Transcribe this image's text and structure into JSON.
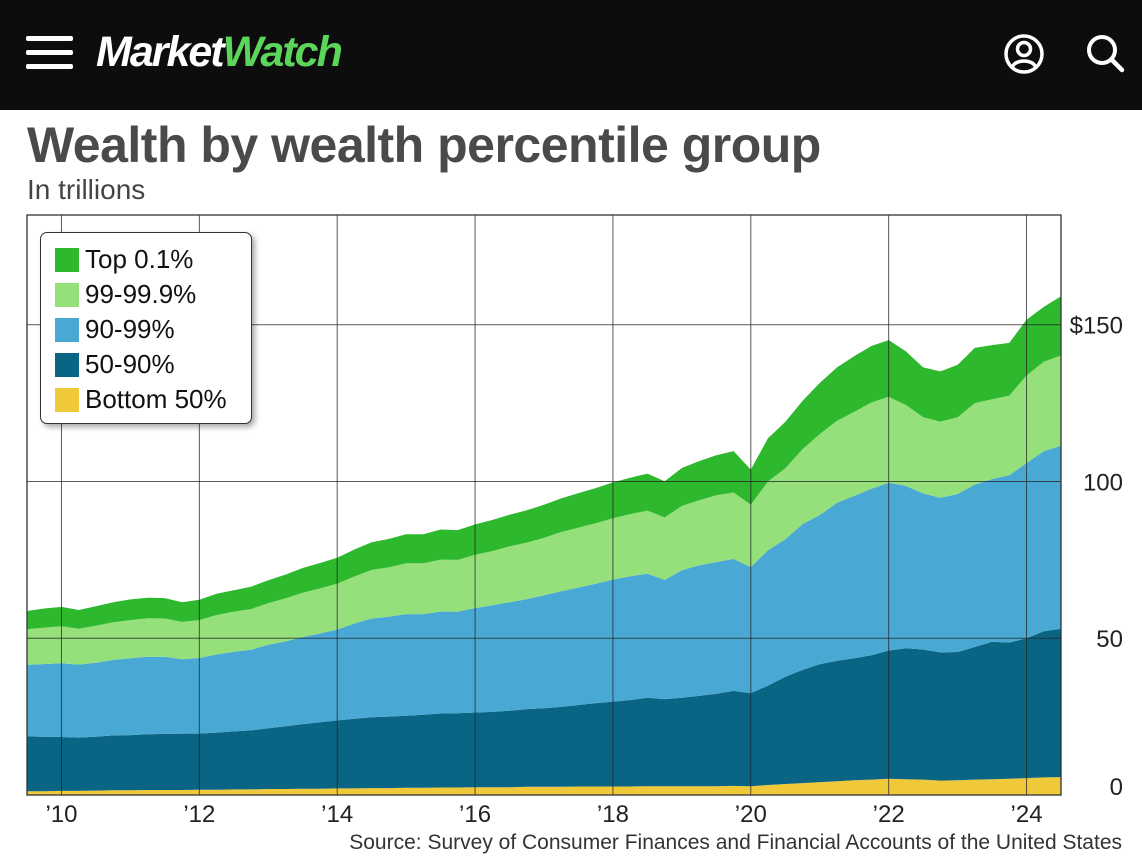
{
  "header": {
    "brand_part1": "Market",
    "brand_part2": "Watch",
    "menu_icon": "hamburger-menu-icon",
    "user_icon": "account-icon",
    "search_icon": "search-icon",
    "colors": {
      "bar": "#0d0d0d",
      "brand_accent": "#5bd65b",
      "brand_text": "#ffffff"
    }
  },
  "chart_data": {
    "type": "area",
    "stacked": true,
    "title": "Wealth by wealth percentile group",
    "subtitle": "In trillions",
    "source": "Source: Survey of Consumer Finances and Financial Accounts of the United States",
    "x_tick_labels": [
      "’10",
      "’12",
      "’14",
      "’16",
      "’18",
      "’20",
      "’22",
      "’24"
    ],
    "x_tick_values": [
      2010,
      2012,
      2014,
      2016,
      2018,
      2020,
      2022,
      2024
    ],
    "y_tick_labels": [
      "0",
      "50",
      "100",
      "$150"
    ],
    "y_tick_values": [
      0,
      50,
      100,
      150
    ],
    "xlim": [
      2009.5,
      2024.5
    ],
    "ylim": [
      0,
      185
    ],
    "grid": true,
    "legend_position": "top-left",
    "x": [
      2009.5,
      2009.75,
      2010.0,
      2010.25,
      2010.5,
      2010.75,
      2011.0,
      2011.25,
      2011.5,
      2011.75,
      2012.0,
      2012.25,
      2012.5,
      2012.75,
      2013.0,
      2013.25,
      2013.5,
      2013.75,
      2014.0,
      2014.25,
      2014.5,
      2014.75,
      2015.0,
      2015.25,
      2015.5,
      2015.75,
      2016.0,
      2016.25,
      2016.5,
      2016.75,
      2017.0,
      2017.25,
      2017.5,
      2017.75,
      2018.0,
      2018.25,
      2018.5,
      2018.75,
      2019.0,
      2019.25,
      2019.5,
      2019.75,
      2020.0,
      2020.25,
      2020.5,
      2020.75,
      2021.0,
      2021.25,
      2021.5,
      2021.75,
      2022.0,
      2022.25,
      2022.5,
      2022.75,
      2023.0,
      2023.25,
      2023.5,
      2023.75,
      2024.0,
      2024.25,
      2024.5
    ],
    "series": [
      {
        "name": "Bottom 50%",
        "color": "#f0c93a",
        "values": [
          1.2,
          1.2,
          1.3,
          1.3,
          1.4,
          1.5,
          1.5,
          1.6,
          1.6,
          1.6,
          1.7,
          1.7,
          1.8,
          1.8,
          1.9,
          1.9,
          2.0,
          2.0,
          2.1,
          2.1,
          2.2,
          2.2,
          2.3,
          2.3,
          2.4,
          2.4,
          2.5,
          2.5,
          2.5,
          2.6,
          2.6,
          2.6,
          2.7,
          2.7,
          2.7,
          2.7,
          2.8,
          2.8,
          2.8,
          2.8,
          2.8,
          2.9,
          2.8,
          3.2,
          3.5,
          3.8,
          4.1,
          4.4,
          4.7,
          4.9,
          5.2,
          5.0,
          4.9,
          4.6,
          4.7,
          4.9,
          5.0,
          5.2,
          5.4,
          5.6,
          5.7
        ]
      },
      {
        "name": "50-90%",
        "color": "#0a6584",
        "values": [
          17.5,
          17.4,
          17.2,
          17.0,
          17.2,
          17.5,
          17.6,
          17.8,
          17.9,
          18.0,
          17.9,
          18.2,
          18.5,
          18.8,
          19.4,
          20.0,
          20.6,
          21.2,
          21.7,
          22.2,
          22.6,
          22.8,
          23.0,
          23.3,
          23.6,
          23.7,
          23.8,
          24.0,
          24.4,
          24.8,
          25.1,
          25.5,
          26.0,
          26.6,
          27.1,
          27.6,
          28.2,
          27.8,
          28.2,
          28.8,
          29.5,
          30.3,
          29.7,
          31.7,
          34.2,
          36.1,
          37.6,
          38.4,
          38.9,
          39.7,
          40.9,
          41.8,
          41.5,
          40.9,
          40.9,
          42.3,
          43.9,
          43.4,
          44.6,
          46.6,
          47.3
        ]
      },
      {
        "name": "90-99%",
        "color": "#4aa9d4",
        "values": [
          22.8,
          23.2,
          23.5,
          23.3,
          23.6,
          24.1,
          24.5,
          24.7,
          24.6,
          23.7,
          24.1,
          24.9,
          25.4,
          25.7,
          26.6,
          27.1,
          27.8,
          28.3,
          29.0,
          30.4,
          31.5,
          31.9,
          32.4,
          32.1,
          32.5,
          32.4,
          33.3,
          34.0,
          34.6,
          35.1,
          36.0,
          36.9,
          37.5,
          38.1,
          38.9,
          39.5,
          39.6,
          38.0,
          40.7,
          41.7,
          42.0,
          42.1,
          40.2,
          43.2,
          43.9,
          46.5,
          47.6,
          50.4,
          51.8,
          53.1,
          53.5,
          51.8,
          49.8,
          49.3,
          50.4,
          51.8,
          51.9,
          53.4,
          55.9,
          57.5,
          58.4
        ]
      },
      {
        "name": "99-99.9%",
        "color": "#96e07c",
        "values": [
          11.4,
          11.6,
          11.8,
          11.4,
          11.8,
          12.0,
          12.2,
          12.3,
          12.2,
          11.9,
          12.1,
          12.6,
          12.8,
          13.0,
          13.3,
          13.7,
          14.1,
          14.4,
          14.6,
          15.0,
          15.5,
          15.7,
          16.2,
          16.2,
          16.6,
          16.5,
          17.0,
          17.3,
          17.8,
          18.0,
          18.3,
          18.9,
          19.1,
          19.3,
          19.6,
          19.8,
          20.1,
          19.9,
          20.5,
          20.7,
          21.3,
          21.2,
          19.9,
          21.9,
          22.6,
          23.9,
          25.8,
          26.2,
          26.8,
          27.5,
          27.4,
          25.8,
          24.3,
          24.3,
          24.5,
          26.0,
          25.4,
          25.4,
          27.9,
          28.5,
          28.8
        ]
      },
      {
        "name": "Top 0.1%",
        "color": "#2db82d",
        "values": [
          5.8,
          6.1,
          6.2,
          6.0,
          6.2,
          6.4,
          6.6,
          6.5,
          6.5,
          6.3,
          6.5,
          6.8,
          6.8,
          7.1,
          7.3,
          7.6,
          7.9,
          8.1,
          8.3,
          8.6,
          8.8,
          9.1,
          9.3,
          9.3,
          9.6,
          9.5,
          9.7,
          9.9,
          10.1,
          10.3,
          10.6,
          10.7,
          11.0,
          11.2,
          11.4,
          11.6,
          11.8,
          11.6,
          12.1,
          12.5,
          12.8,
          13.2,
          11.2,
          13.8,
          14.8,
          15.4,
          16.3,
          17.0,
          17.8,
          18.0,
          18.1,
          17.1,
          15.9,
          16.0,
          16.7,
          17.6,
          17.3,
          16.8,
          17.8,
          17.5,
          18.9
        ]
      }
    ],
    "legend": [
      "Top 0.1%",
      "99-99.9%",
      "90-99%",
      "50-90%",
      "Bottom 50%"
    ]
  }
}
